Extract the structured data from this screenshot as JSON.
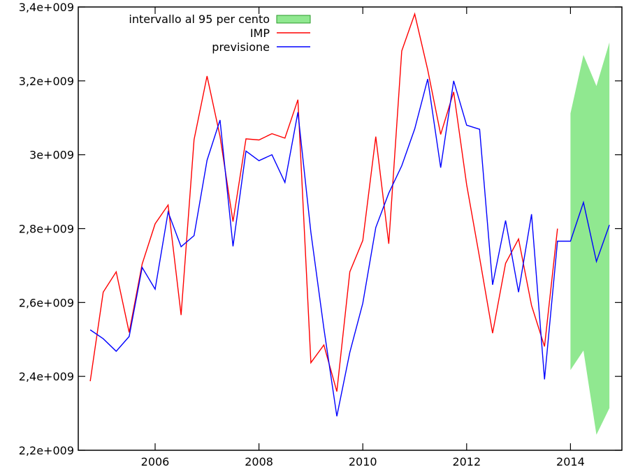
{
  "chart_data": {
    "type": "line",
    "title": "",
    "xlabel": "",
    "ylabel": "",
    "xlim": [
      2004.6,
      2014.95
    ],
    "ylim": [
      2200000000.0,
      3400000000.0
    ],
    "x_ticks": [
      2006,
      2008,
      2010,
      2012,
      2014
    ],
    "x_tick_labels": [
      "2006",
      "2008",
      "2010",
      "2012",
      "2014"
    ],
    "y_ticks": [
      2200000000.0,
      2400000000.0,
      2600000000.0,
      2800000000.0,
      3000000000.0,
      3200000000.0,
      3400000000.0
    ],
    "y_tick_labels": [
      "2,2e+009",
      "2,4e+009",
      "2,6e+009",
      "2,8e+009",
      "3e+009",
      "3,2e+009",
      "3,4e+009"
    ],
    "grid": false,
    "legend_position": "top-left",
    "x_start": 2004.75,
    "x_step": 0.25,
    "band": {
      "name": "intervallo al 95 per cento",
      "color": "#90e890",
      "x": [
        2014,
        2014.25,
        2014.5,
        2014.75
      ],
      "lower": [
        2417000000.0,
        2470000000.0,
        2242000000.0,
        2314000000.0
      ],
      "upper": [
        3112000000.0,
        3270000000.0,
        3186000000.0,
        3304000000.0
      ]
    },
    "series": [
      {
        "name": "IMP",
        "color": "#ff0000",
        "values": [
          2387000000.0,
          2628000000.0,
          2683000000.0,
          2519000000.0,
          2704000000.0,
          2813000000.0,
          2864000000.0,
          2566000000.0,
          3041000000.0,
          3213000000.0,
          3050000000.0,
          2819000000.0,
          3043000000.0,
          3040000000.0,
          3057000000.0,
          3045000000.0,
          3149000000.0,
          2437000000.0,
          2485000000.0,
          2359000000.0,
          2683000000.0,
          2768000000.0,
          3049000000.0,
          2759000000.0,
          3281000000.0,
          3381000000.0,
          3230000000.0,
          3055000000.0,
          3170000000.0,
          2919000000.0,
          2721000000.0,
          2517000000.0,
          2706000000.0,
          2772000000.0,
          2592000000.0,
          2481000000.0,
          2800000000.0
        ]
      },
      {
        "name": "previsione",
        "color": "#0000ff",
        "values": [
          2526000000.0,
          2502000000.0,
          2468000000.0,
          2508000000.0,
          2695000000.0,
          2636000000.0,
          2845000000.0,
          2751000000.0,
          2781000000.0,
          2985000000.0,
          3094000000.0,
          2752000000.0,
          3010000000.0,
          2984000000.0,
          3000000000.0,
          2925000000.0,
          3115000000.0,
          2790000000.0,
          2530000000.0,
          2292000000.0,
          2465000000.0,
          2598000000.0,
          2803000000.0,
          2896000000.0,
          2970000000.0,
          3070000000.0,
          3205000000.0,
          2965000000.0,
          3200000000.0,
          3080000000.0,
          3069000000.0,
          2648000000.0,
          2822000000.0,
          2628000000.0,
          2839000000.0,
          2392000000.0,
          2766000000.0,
          2766000000.0,
          2871000000.0,
          2711000000.0,
          2810000000.0
        ]
      }
    ]
  }
}
